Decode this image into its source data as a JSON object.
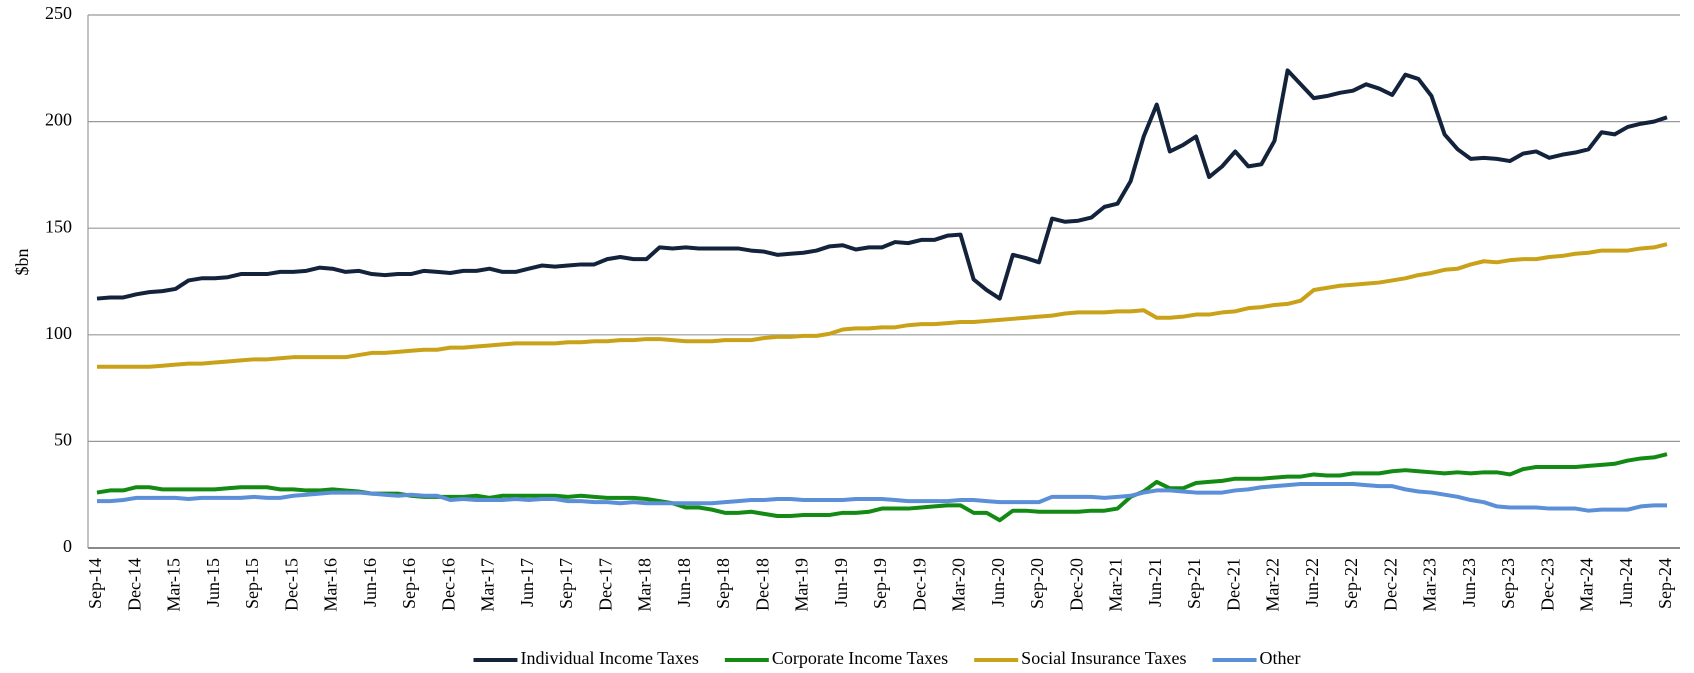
{
  "chart_data": {
    "type": "line",
    "y_label": "$bn",
    "ylim": [
      0,
      250
    ],
    "yticks": [
      0,
      50,
      100,
      150,
      200,
      250
    ],
    "grid": true,
    "legend": "bottom",
    "categories": [
      "Sep-14",
      null,
      null,
      "Dec-14",
      null,
      null,
      "Mar-15",
      null,
      null,
      "Jun-15",
      null,
      null,
      "Sep-15",
      null,
      null,
      "Dec-15",
      null,
      null,
      "Mar-16",
      null,
      null,
      "Jun-16",
      null,
      null,
      "Sep-16",
      null,
      null,
      "Dec-16",
      null,
      null,
      "Mar-17",
      null,
      null,
      "Jun-17",
      null,
      null,
      "Sep-17",
      null,
      null,
      "Dec-17",
      null,
      null,
      "Mar-18",
      null,
      null,
      "Jun-18",
      null,
      null,
      "Sep-18",
      null,
      null,
      "Dec-18",
      null,
      null,
      "Mar-19",
      null,
      null,
      "Jun-19",
      null,
      null,
      "Sep-19",
      null,
      null,
      "Dec-19",
      null,
      null,
      "Mar-20",
      null,
      null,
      "Jun-20",
      null,
      null,
      "Sep-20",
      null,
      null,
      "Dec-20",
      null,
      null,
      "Mar-21",
      null,
      null,
      "Jun-21",
      null,
      null,
      "Sep-21",
      null,
      null,
      "Dec-21",
      null,
      null,
      "Mar-22",
      null,
      null,
      "Jun-22",
      null,
      null,
      "Sep-22",
      null,
      null,
      "Dec-22",
      null,
      null,
      "Mar-23",
      null,
      null,
      "Jun-23",
      null,
      null,
      "Sep-23",
      null,
      null,
      "Dec-23",
      null,
      null,
      "Mar-24",
      null,
      null,
      "Jun-24",
      null,
      null,
      "Sep-24"
    ],
    "series": [
      {
        "name": "Individual Income Taxes",
        "color": "#14233c",
        "values": [
          117,
          117.5,
          117.5,
          119,
          120,
          120.5,
          121.5,
          125.5,
          126.5,
          126.5,
          127,
          128.5,
          128.5,
          128.5,
          129.5,
          129.5,
          130,
          131.5,
          131,
          129.5,
          130,
          128.5,
          128,
          128.5,
          128.5,
          130,
          129.5,
          129,
          130,
          130,
          131,
          129.5,
          129.5,
          131,
          132.5,
          132,
          132.5,
          133,
          133,
          135.5,
          136.5,
          135.5,
          135.5,
          141,
          140.5,
          141,
          140.5,
          140.5,
          140.5,
          140.5,
          139.5,
          139,
          137.5,
          138,
          138.5,
          139.5,
          141.5,
          142,
          140,
          141,
          141,
          143.5,
          143,
          144.5,
          144.5,
          146.5,
          147,
          126,
          121,
          117,
          137.5,
          136,
          134,
          154.5,
          153,
          153.5,
          155,
          160,
          161.5,
          172,
          193,
          208,
          186,
          189,
          193,
          174,
          179,
          186,
          179,
          180,
          191,
          224,
          217.5,
          211,
          212,
          213.5,
          214.5,
          217.5,
          215.5,
          212.5,
          222,
          220,
          212,
          194,
          187,
          182.5,
          183,
          182.5,
          181.5,
          185,
          186,
          183,
          184.5,
          185.5,
          187,
          195,
          194,
          197.5,
          199,
          200,
          202
        ]
      },
      {
        "name": "Corporate Income Taxes",
        "color": "#138a13",
        "values": [
          26,
          27,
          27,
          28.5,
          28.5,
          27.5,
          27.5,
          27.5,
          27.5,
          27.5,
          28,
          28.5,
          28.5,
          28.5,
          27.5,
          27.5,
          27,
          27,
          27.5,
          27,
          26.5,
          25.5,
          25.5,
          25.5,
          24.5,
          24,
          24,
          24,
          24,
          24.5,
          23.5,
          24.5,
          24.5,
          24.5,
          24.5,
          24.5,
          24,
          24.5,
          24,
          23.5,
          23.5,
          23.5,
          23,
          22,
          21,
          19,
          19,
          18,
          16.5,
          16.5,
          17,
          16,
          15,
          15,
          15.5,
          15.5,
          15.5,
          16.5,
          16.5,
          17,
          18.5,
          18.5,
          18.5,
          19,
          19.5,
          20,
          20,
          16.5,
          16.5,
          13,
          17.5,
          17.5,
          17,
          17,
          17,
          17,
          17.5,
          17.5,
          18.5,
          24,
          26.5,
          31,
          28,
          28,
          30.5,
          31,
          31.5,
          32.5,
          32.5,
          32.5,
          33,
          33.5,
          33.5,
          34.5,
          34,
          34,
          35,
          35,
          35,
          36,
          36.5,
          36,
          35.5,
          35,
          35.5,
          35,
          35.5,
          35.5,
          34.5,
          37,
          38,
          38,
          38,
          38,
          38.5,
          39,
          39.5,
          41,
          42,
          42.5,
          44
        ]
      },
      {
        "name": "Social Insurance Taxes",
        "color": "#c9a21a",
        "values": [
          85,
          85,
          85,
          85,
          85,
          85.5,
          86,
          86.5,
          86.5,
          87,
          87.5,
          88,
          88.5,
          88.5,
          89,
          89.5,
          89.5,
          89.5,
          89.5,
          89.5,
          90.5,
          91.5,
          91.5,
          92,
          92.5,
          93,
          93,
          94,
          94,
          94.5,
          95,
          95.5,
          96,
          96,
          96,
          96,
          96.5,
          96.5,
          97,
          97,
          97.5,
          97.5,
          98,
          98,
          97.5,
          97,
          97,
          97,
          97.5,
          97.5,
          97.5,
          98.5,
          99,
          99,
          99.5,
          99.5,
          100.5,
          102.5,
          103,
          103,
          103.5,
          103.5,
          104.5,
          105,
          105,
          105.5,
          106,
          106,
          106.5,
          107,
          107.5,
          108,
          108.5,
          109,
          110,
          110.5,
          110.5,
          110.5,
          111,
          111,
          111.5,
          108,
          108,
          108.5,
          109.5,
          109.5,
          110.5,
          111,
          112.5,
          113,
          114,
          114.5,
          116,
          121,
          122,
          123,
          123.5,
          124,
          124.5,
          125.5,
          126.5,
          128,
          129,
          130.5,
          131,
          133,
          134.5,
          134,
          135,
          135.5,
          135.5,
          136.5,
          137,
          138,
          138.5,
          139.5,
          139.5,
          139.5,
          140.5,
          141,
          142.5
        ]
      },
      {
        "name": "Other",
        "color": "#5b8fd8",
        "values": [
          22,
          22,
          22.5,
          23.5,
          23.5,
          23.5,
          23.5,
          23,
          23.5,
          23.5,
          23.5,
          23.5,
          24,
          23.5,
          23.5,
          24.5,
          25,
          25.5,
          26,
          26,
          26,
          25.5,
          25,
          24.5,
          25,
          24.5,
          24.5,
          22.5,
          23,
          22.5,
          22.5,
          22.5,
          23,
          22.5,
          23,
          23,
          22,
          22,
          21.5,
          21.5,
          21,
          21.5,
          21,
          21,
          21,
          21,
          21,
          21,
          21.5,
          22,
          22.5,
          22.5,
          23,
          23,
          22.5,
          22.5,
          22.5,
          22.5,
          23,
          23,
          23,
          22.5,
          22,
          22,
          22,
          22,
          22.5,
          22.5,
          22,
          21.5,
          21.5,
          21.5,
          21.5,
          24,
          24,
          24,
          24,
          23.5,
          24,
          24.5,
          26,
          27,
          27,
          26.5,
          26,
          26,
          26,
          27,
          27.5,
          28.5,
          29,
          29.5,
          30,
          30,
          30,
          30,
          30,
          29.5,
          29,
          29,
          27.5,
          26.5,
          26,
          25,
          24,
          22.5,
          21.5,
          19.5,
          19,
          19,
          19,
          18.5,
          18.5,
          18.5,
          17.5,
          18,
          18,
          18,
          19.5,
          20,
          20
        ]
      }
    ]
  }
}
